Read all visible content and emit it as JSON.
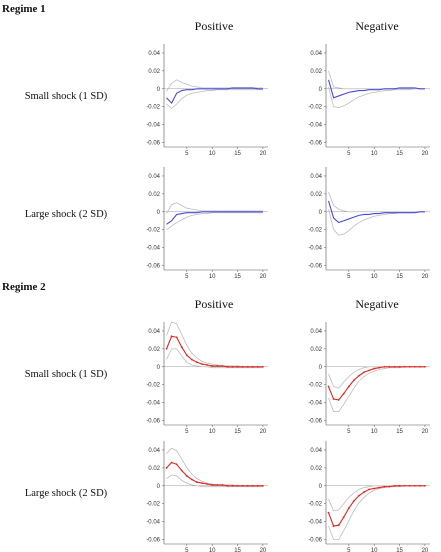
{
  "regime1": {
    "title": "Regime 1",
    "col_positive": "Positive",
    "col_negative": "Negative",
    "row_small": "Small shock (1 SD)",
    "row_large": "Large shock (2 SD)"
  },
  "regime2": {
    "title": "Regime 2",
    "col_positive": "Positive",
    "col_negative": "Negative",
    "row_small": "Small shock (1 SD)",
    "row_large": "Large shock (2 SD)"
  },
  "colors": {
    "regime1_line": "#4a4ad8",
    "regime2_line": "#e0261e",
    "band": "#bdbdbd",
    "zero": "#999999",
    "axis": "#555555"
  },
  "chart_data": [
    {
      "id": "r1-pos-small",
      "type": "line",
      "x": [
        1,
        2,
        3,
        4,
        5,
        6,
        7,
        8,
        9,
        10,
        11,
        12,
        13,
        14,
        15,
        16,
        17,
        18,
        19,
        20
      ],
      "ylim": [
        -0.065,
        0.05
      ],
      "yticks": [
        0.04,
        0.02,
        0,
        -0.02,
        -0.04,
        -0.06
      ],
      "xticks": [
        5,
        10,
        15,
        20
      ],
      "series": [
        {
          "values": [
            -0.01,
            -0.016,
            -0.005,
            -0.002,
            -0.001,
            -0.001,
            0,
            0,
            0,
            0,
            0,
            0,
            0,
            0.001,
            0.001,
            0.001,
            0.001,
            0.001,
            0,
            0
          ]
        },
        {
          "values": [
            -0.003,
            0.006,
            0.01,
            0.007,
            0.005,
            0.003,
            0.002,
            0.001,
            0.001,
            0.001,
            0.001,
            0.001,
            0.001,
            0.001,
            0.001,
            0.001,
            0.001,
            0.001,
            0.001,
            0.001
          ]
        },
        {
          "values": [
            -0.017,
            -0.022,
            -0.017,
            -0.011,
            -0.007,
            -0.005,
            -0.004,
            -0.003,
            -0.002,
            -0.002,
            -0.001,
            -0.001,
            -0.001,
            -0.001,
            -0.001,
            -0.001,
            -0.001,
            -0.001,
            -0.001,
            -0.001
          ]
        }
      ]
    },
    {
      "id": "r1-neg-small",
      "type": "line",
      "x": [
        1,
        2,
        3,
        4,
        5,
        6,
        7,
        8,
        9,
        10,
        11,
        12,
        13,
        14,
        15,
        16,
        17,
        18,
        19,
        20
      ],
      "ylim": [
        -0.065,
        0.05
      ],
      "yticks": [
        0.04,
        0.02,
        0,
        -0.02,
        -0.04,
        -0.06
      ],
      "xticks": [
        5,
        10,
        15,
        20
      ],
      "series": [
        {
          "values": [
            0.01,
            -0.01,
            -0.008,
            -0.006,
            -0.004,
            -0.003,
            -0.002,
            -0.002,
            -0.001,
            -0.001,
            -0.001,
            0,
            0,
            0,
            0.001,
            0.001,
            0.001,
            0.001,
            0,
            0
          ]
        },
        {
          "values": [
            0.02,
            0.002,
            0.001,
            0,
            0,
            0,
            0,
            0,
            0,
            0,
            0,
            0,
            0,
            0,
            0,
            0,
            0,
            0,
            0,
            0
          ]
        },
        {
          "values": [
            0.002,
            -0.02,
            -0.021,
            -0.019,
            -0.016,
            -0.012,
            -0.009,
            -0.007,
            -0.005,
            -0.004,
            -0.003,
            -0.002,
            -0.002,
            -0.001,
            -0.001,
            -0.001,
            -0.001,
            0,
            0,
            0
          ]
        }
      ]
    },
    {
      "id": "r1-pos-large",
      "type": "line",
      "x": [
        1,
        2,
        3,
        4,
        5,
        6,
        7,
        8,
        9,
        10,
        11,
        12,
        13,
        14,
        15,
        16,
        17,
        18,
        19,
        20
      ],
      "ylim": [
        -0.065,
        0.05
      ],
      "yticks": [
        0.04,
        0.02,
        0,
        -0.02,
        -0.04,
        -0.06
      ],
      "xticks": [
        5,
        10,
        15,
        20
      ],
      "series": [
        {
          "values": [
            -0.014,
            -0.01,
            -0.003,
            -0.002,
            -0.001,
            -0.001,
            -0.001,
            0,
            0,
            0,
            0,
            0,
            0,
            0,
            0,
            0,
            0,
            0,
            0,
            0
          ]
        },
        {
          "values": [
            -0.002,
            0.008,
            0.01,
            0.007,
            0.004,
            0.003,
            0.002,
            0.001,
            0.001,
            0.001,
            0.001,
            0.001,
            0.001,
            0.001,
            0.001,
            0.001,
            0.001,
            0.001,
            0.001,
            0.001
          ]
        },
        {
          "values": [
            -0.02,
            -0.016,
            -0.012,
            -0.009,
            -0.006,
            -0.004,
            -0.003,
            -0.002,
            -0.002,
            -0.001,
            -0.001,
            -0.001,
            -0.001,
            -0.001,
            -0.001,
            -0.001,
            -0.001,
            -0.001,
            -0.001,
            -0.001
          ]
        }
      ]
    },
    {
      "id": "r1-neg-large",
      "type": "line",
      "x": [
        1,
        2,
        3,
        4,
        5,
        6,
        7,
        8,
        9,
        10,
        11,
        12,
        13,
        14,
        15,
        16,
        17,
        18,
        19,
        20
      ],
      "ylim": [
        -0.065,
        0.05
      ],
      "yticks": [
        0.04,
        0.02,
        0,
        -0.02,
        -0.04,
        -0.06
      ],
      "xticks": [
        5,
        10,
        15,
        20
      ],
      "series": [
        {
          "values": [
            0.012,
            -0.007,
            -0.012,
            -0.01,
            -0.008,
            -0.006,
            -0.004,
            -0.003,
            -0.003,
            -0.002,
            -0.002,
            -0.001,
            -0.001,
            -0.001,
            -0.001,
            -0.001,
            -0.001,
            -0.001,
            0,
            0
          ]
        },
        {
          "values": [
            0.022,
            0.007,
            0.003,
            0.001,
            0,
            0,
            0,
            0,
            0,
            0,
            0,
            0,
            0,
            0,
            0,
            0,
            0,
            0,
            0,
            0
          ]
        },
        {
          "values": [
            0.003,
            -0.02,
            -0.026,
            -0.025,
            -0.021,
            -0.016,
            -0.012,
            -0.009,
            -0.007,
            -0.005,
            -0.004,
            -0.003,
            -0.002,
            -0.002,
            -0.001,
            -0.001,
            -0.001,
            -0.001,
            0,
            0
          ]
        }
      ]
    },
    {
      "id": "r2-pos-small",
      "type": "line",
      "x": [
        1,
        2,
        3,
        4,
        5,
        6,
        7,
        8,
        9,
        10,
        11,
        12,
        13,
        14,
        15,
        16,
        17,
        18,
        19,
        20
      ],
      "ylim": [
        -0.065,
        0.05
      ],
      "yticks": [
        0.04,
        0.02,
        0,
        -0.02,
        -0.04,
        -0.06
      ],
      "xticks": [
        5,
        10,
        15,
        20
      ],
      "series": [
        {
          "values": [
            0.02,
            0.034,
            0.033,
            0.022,
            0.013,
            0.008,
            0.005,
            0.003,
            0.002,
            0.001,
            0.001,
            0.001,
            0,
            0,
            0,
            0,
            0,
            0,
            0,
            0
          ]
        },
        {
          "values": [
            0.035,
            0.05,
            0.048,
            0.036,
            0.024,
            0.015,
            0.01,
            0.006,
            0.004,
            0.003,
            0.002,
            0.001,
            0.001,
            0.001,
            0.001,
            0,
            0,
            0,
            0,
            0
          ]
        },
        {
          "values": [
            0.008,
            0.02,
            0.02,
            0.012,
            0.005,
            0.002,
            0.001,
            0,
            0,
            -0.001,
            -0.001,
            -0.001,
            -0.001,
            -0.001,
            -0.001,
            -0.001,
            -0.001,
            -0.001,
            -0.001,
            -0.001
          ]
        }
      ]
    },
    {
      "id": "r2-neg-small",
      "type": "line",
      "x": [
        1,
        2,
        3,
        4,
        5,
        6,
        7,
        8,
        9,
        10,
        11,
        12,
        13,
        14,
        15,
        16,
        17,
        18,
        19,
        20
      ],
      "ylim": [
        -0.065,
        0.05
      ],
      "yticks": [
        0.04,
        0.02,
        0,
        -0.02,
        -0.04,
        -0.06
      ],
      "xticks": [
        5,
        10,
        15,
        20
      ],
      "series": [
        {
          "values": [
            -0.022,
            -0.036,
            -0.037,
            -0.03,
            -0.022,
            -0.015,
            -0.01,
            -0.006,
            -0.004,
            -0.002,
            -0.001,
            0,
            0,
            0,
            0,
            0,
            0,
            0,
            0,
            0
          ]
        },
        {
          "values": [
            -0.008,
            -0.022,
            -0.024,
            -0.017,
            -0.011,
            -0.006,
            -0.003,
            -0.001,
            0,
            0,
            0,
            0,
            0,
            0,
            0,
            0,
            0,
            0,
            0,
            0
          ]
        },
        {
          "values": [
            -0.035,
            -0.05,
            -0.05,
            -0.042,
            -0.033,
            -0.024,
            -0.016,
            -0.011,
            -0.007,
            -0.005,
            -0.003,
            -0.002,
            -0.001,
            -0.001,
            -0.001,
            0,
            0,
            0,
            0,
            0
          ]
        }
      ]
    },
    {
      "id": "r2-pos-large",
      "type": "line",
      "x": [
        1,
        2,
        3,
        4,
        5,
        6,
        7,
        8,
        9,
        10,
        11,
        12,
        13,
        14,
        15,
        16,
        17,
        18,
        19,
        20
      ],
      "ylim": [
        -0.065,
        0.05
      ],
      "yticks": [
        0.04,
        0.02,
        0,
        -0.02,
        -0.04,
        -0.06
      ],
      "xticks": [
        5,
        10,
        15,
        20
      ],
      "series": [
        {
          "values": [
            0.02,
            0.026,
            0.024,
            0.017,
            0.011,
            0.007,
            0.004,
            0.003,
            0.002,
            0.001,
            0.001,
            0.001,
            0,
            0,
            0,
            0,
            0,
            0,
            0,
            0
          ]
        },
        {
          "values": [
            0.036,
            0.042,
            0.039,
            0.03,
            0.02,
            0.013,
            0.008,
            0.005,
            0.003,
            0.002,
            0.001,
            0.001,
            0.001,
            0.001,
            0,
            0,
            0,
            0,
            0,
            0
          ]
        },
        {
          "values": [
            0.008,
            0.012,
            0.011,
            0.006,
            0.003,
            0.001,
            0,
            -0.001,
            -0.001,
            -0.001,
            -0.001,
            -0.001,
            -0.001,
            -0.001,
            -0.001,
            -0.001,
            -0.001,
            -0.001,
            -0.001,
            -0.001
          ]
        }
      ]
    },
    {
      "id": "r2-neg-large",
      "type": "line",
      "x": [
        1,
        2,
        3,
        4,
        5,
        6,
        7,
        8,
        9,
        10,
        11,
        12,
        13,
        14,
        15,
        16,
        17,
        18,
        19,
        20
      ],
      "ylim": [
        -0.065,
        0.05
      ],
      "yticks": [
        0.04,
        0.02,
        0,
        -0.02,
        -0.04,
        -0.06
      ],
      "xticks": [
        5,
        10,
        15,
        20
      ],
      "series": [
        {
          "values": [
            -0.03,
            -0.045,
            -0.044,
            -0.035,
            -0.025,
            -0.017,
            -0.011,
            -0.007,
            -0.004,
            -0.003,
            -0.002,
            -0.001,
            -0.001,
            0,
            0,
            0,
            0,
            0,
            0,
            0
          ]
        },
        {
          "values": [
            -0.015,
            -0.028,
            -0.027,
            -0.02,
            -0.013,
            -0.008,
            -0.004,
            -0.002,
            -0.001,
            0,
            0,
            0,
            0,
            0,
            0,
            0,
            0,
            0,
            0,
            0
          ]
        },
        {
          "values": [
            -0.045,
            -0.06,
            -0.06,
            -0.05,
            -0.039,
            -0.028,
            -0.019,
            -0.013,
            -0.008,
            -0.005,
            -0.003,
            -0.002,
            -0.001,
            -0.001,
            -0.001,
            0,
            0,
            0,
            0,
            0
          ]
        }
      ]
    }
  ]
}
